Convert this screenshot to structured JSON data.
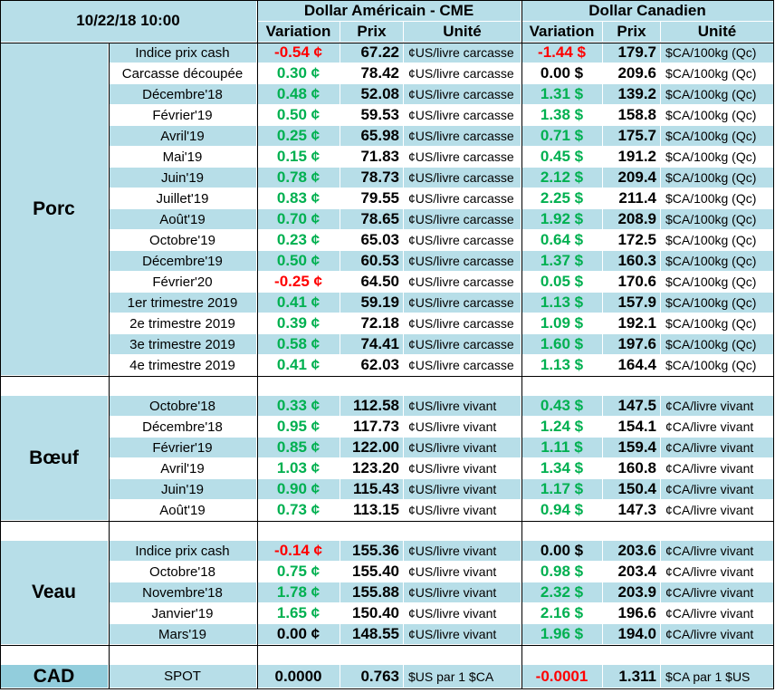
{
  "header": {
    "timestamp": "10/22/18 10:00",
    "usd_title": "Dollar Américain - CME",
    "cad_title": "Dollar Canadien",
    "columns": [
      "Variation",
      "Prix",
      "Unité",
      "Variation",
      "Prix",
      "Unité"
    ]
  },
  "groups": [
    {
      "label": "Porc",
      "rows": [
        [
          "Indice prix cash",
          "-0.54 ¢",
          "67.22",
          "¢US/livre carcasse",
          "-1.44 $",
          "179.7",
          "$CA/100kg (Qc)"
        ],
        [
          "Carcasse découpée",
          "0.30 ¢",
          "78.42",
          "¢US/livre carcasse",
          "0.00 $",
          "209.6",
          "$CA/100kg (Qc)"
        ],
        [
          "Décembre'18",
          "0.48 ¢",
          "52.08",
          "¢US/livre carcasse",
          "1.31 $",
          "139.2",
          "$CA/100kg (Qc)"
        ],
        [
          "Février'19",
          "0.50 ¢",
          "59.53",
          "¢US/livre carcasse",
          "1.38 $",
          "158.8",
          "$CA/100kg (Qc)"
        ],
        [
          "Avril'19",
          "0.25 ¢",
          "65.98",
          "¢US/livre carcasse",
          "0.71 $",
          "175.7",
          "$CA/100kg (Qc)"
        ],
        [
          "Mai'19",
          "0.15 ¢",
          "71.83",
          "¢US/livre carcasse",
          "0.45 $",
          "191.2",
          "$CA/100kg (Qc)"
        ],
        [
          "Juin'19",
          "0.78 ¢",
          "78.73",
          "¢US/livre carcasse",
          "2.12 $",
          "209.4",
          "$CA/100kg (Qc)"
        ],
        [
          "Juillet'19",
          "0.83 ¢",
          "79.55",
          "¢US/livre carcasse",
          "2.25 $",
          "211.4",
          "$CA/100kg (Qc)"
        ],
        [
          "Août'19",
          "0.70 ¢",
          "78.65",
          "¢US/livre carcasse",
          "1.92 $",
          "208.9",
          "$CA/100kg (Qc)"
        ],
        [
          "Octobre'19",
          "0.23 ¢",
          "65.03",
          "¢US/livre carcasse",
          "0.64 $",
          "172.5",
          "$CA/100kg (Qc)"
        ],
        [
          "Décembre'19",
          "0.50 ¢",
          "60.53",
          "¢US/livre carcasse",
          "1.37 $",
          "160.3",
          "$CA/100kg (Qc)"
        ],
        [
          "Février'20",
          "-0.25 ¢",
          "64.50",
          "¢US/livre carcasse",
          "0.05 $",
          "170.6",
          "$CA/100kg (Qc)"
        ],
        [
          "1er trimestre 2019",
          "0.41 ¢",
          "59.19",
          "¢US/livre carcasse",
          "1.13 $",
          "157.9",
          "$CA/100kg (Qc)"
        ],
        [
          "2e trimestre 2019",
          "0.39 ¢",
          "72.18",
          "¢US/livre carcasse",
          "1.09 $",
          "192.1",
          "$CA/100kg (Qc)"
        ],
        [
          "3e trimestre 2019",
          "0.58 ¢",
          "74.41",
          "¢US/livre carcasse",
          "1.60 $",
          "197.6",
          "$CA/100kg (Qc)"
        ],
        [
          "4e trimestre 2019",
          "0.41 ¢",
          "62.03",
          "¢US/livre carcasse",
          "1.13 $",
          "164.4",
          "$CA/100kg (Qc)"
        ]
      ]
    },
    {
      "label": "Bœuf",
      "rows": [
        [
          "Octobre'18",
          "0.33 ¢",
          "112.58",
          "¢US/livre vivant",
          "0.43 $",
          "147.5",
          "¢CA/livre vivant"
        ],
        [
          "Décembre'18",
          "0.95 ¢",
          "117.73",
          "¢US/livre vivant",
          "1.24 $",
          "154.1",
          "¢CA/livre vivant"
        ],
        [
          "Février'19",
          "0.85 ¢",
          "122.00",
          "¢US/livre vivant",
          "1.11 $",
          "159.4",
          "¢CA/livre vivant"
        ],
        [
          "Avril'19",
          "1.03 ¢",
          "123.20",
          "¢US/livre vivant",
          "1.34 $",
          "160.8",
          "¢CA/livre vivant"
        ],
        [
          "Juin'19",
          "0.90 ¢",
          "115.43",
          "¢US/livre vivant",
          "1.17 $",
          "150.4",
          "¢CA/livre vivant"
        ],
        [
          "Août'19",
          "0.73 ¢",
          "113.15",
          "¢US/livre vivant",
          "0.94 $",
          "147.3",
          "¢CA/livre vivant"
        ]
      ]
    },
    {
      "label": "Veau",
      "rows": [
        [
          "Indice prix cash",
          "-0.14 ¢",
          "155.36",
          "¢US/livre vivant",
          "0.00 $",
          "203.6",
          "¢CA/livre vivant"
        ],
        [
          "Octobre'18",
          "0.75 ¢",
          "155.40",
          "¢US/livre vivant",
          "0.98 $",
          "203.4",
          "¢CA/livre vivant"
        ],
        [
          "Novembre'18",
          "1.78 ¢",
          "155.88",
          "¢US/livre vivant",
          "2.32 $",
          "203.9",
          "¢CA/livre vivant"
        ],
        [
          "Janvier'19",
          "1.65 ¢",
          "150.40",
          "¢US/livre vivant",
          "2.16 $",
          "196.6",
          "¢CA/livre vivant"
        ],
        [
          "Mars'19",
          "0.00 ¢",
          "148.55",
          "¢US/livre vivant",
          "1.96 $",
          "194.0",
          "¢CA/livre vivant"
        ]
      ]
    },
    {
      "label": "CAD",
      "rows": [
        [
          "SPOT",
          "0.0000",
          "0.763",
          "$US par 1 $CA",
          "-0.0001",
          "1.311",
          "$CA par 1 $US"
        ]
      ]
    }
  ]
}
